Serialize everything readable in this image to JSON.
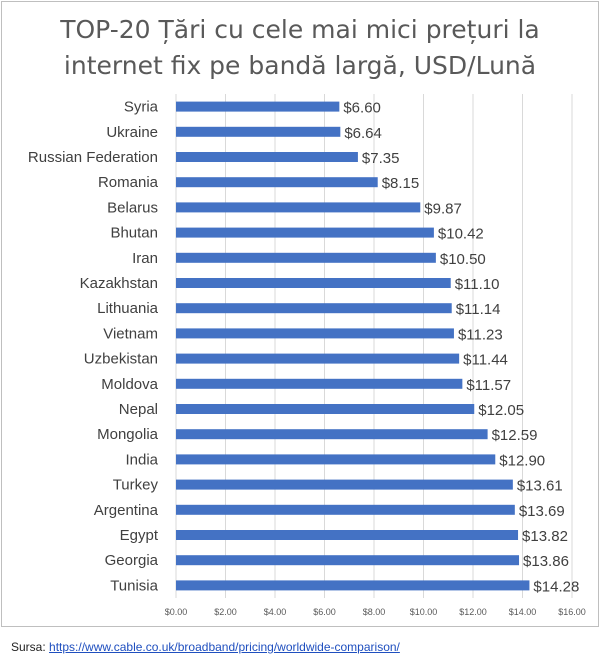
{
  "chart_data": {
    "type": "bar",
    "orientation": "horizontal",
    "title": "TOP-20 Țări cu cele mai mici prețuri la internet fix pe bandă largă, USD/Lună",
    "title_lines": [
      "TOP-20 Țări cu cele mai mici prețuri la",
      "internet fix pe bandă largă, USD/Lună"
    ],
    "categories": [
      "Syria",
      "Ukraine",
      "Russian Federation",
      "Romania",
      "Belarus",
      "Bhutan",
      "Iran",
      "Kazakhstan",
      "Lithuania",
      "Vietnam",
      "Uzbekistan",
      "Moldova",
      "Nepal",
      "Mongolia",
      "India",
      "Turkey",
      "Argentina",
      "Egypt",
      "Georgia",
      "Tunisia"
    ],
    "values": [
      6.6,
      6.64,
      7.35,
      8.15,
      9.87,
      10.42,
      10.5,
      11.1,
      11.14,
      11.23,
      11.44,
      11.57,
      12.05,
      12.59,
      12.9,
      13.61,
      13.69,
      13.82,
      13.86,
      14.28
    ],
    "data_labels": [
      "$6.60",
      "$6.64",
      "$7.35",
      "$8.15",
      "$9.87",
      "$10.42",
      "$10.50",
      "$11.10",
      "$11.14",
      "$11.23",
      "$11.44",
      "$11.57",
      "$12.05",
      "$12.59",
      "$12.90",
      "$13.61",
      "$13.69",
      "$13.82",
      "$13.86",
      "$14.28"
    ],
    "xlim": [
      0,
      16
    ],
    "xticks": [
      "$0.00",
      "$2.00",
      "$4.00",
      "$6.00",
      "$8.00",
      "$10.00",
      "$12.00",
      "$14.00",
      "$16.00"
    ],
    "grid": true,
    "bar_color": "#4472c4",
    "grid_color": "#d9d9d9",
    "xlabel": "",
    "ylabel": ""
  },
  "source": {
    "label": "Sursa:",
    "url": "https://www.cable.co.uk/broadband/pricing/worldwide-comparison/"
  }
}
